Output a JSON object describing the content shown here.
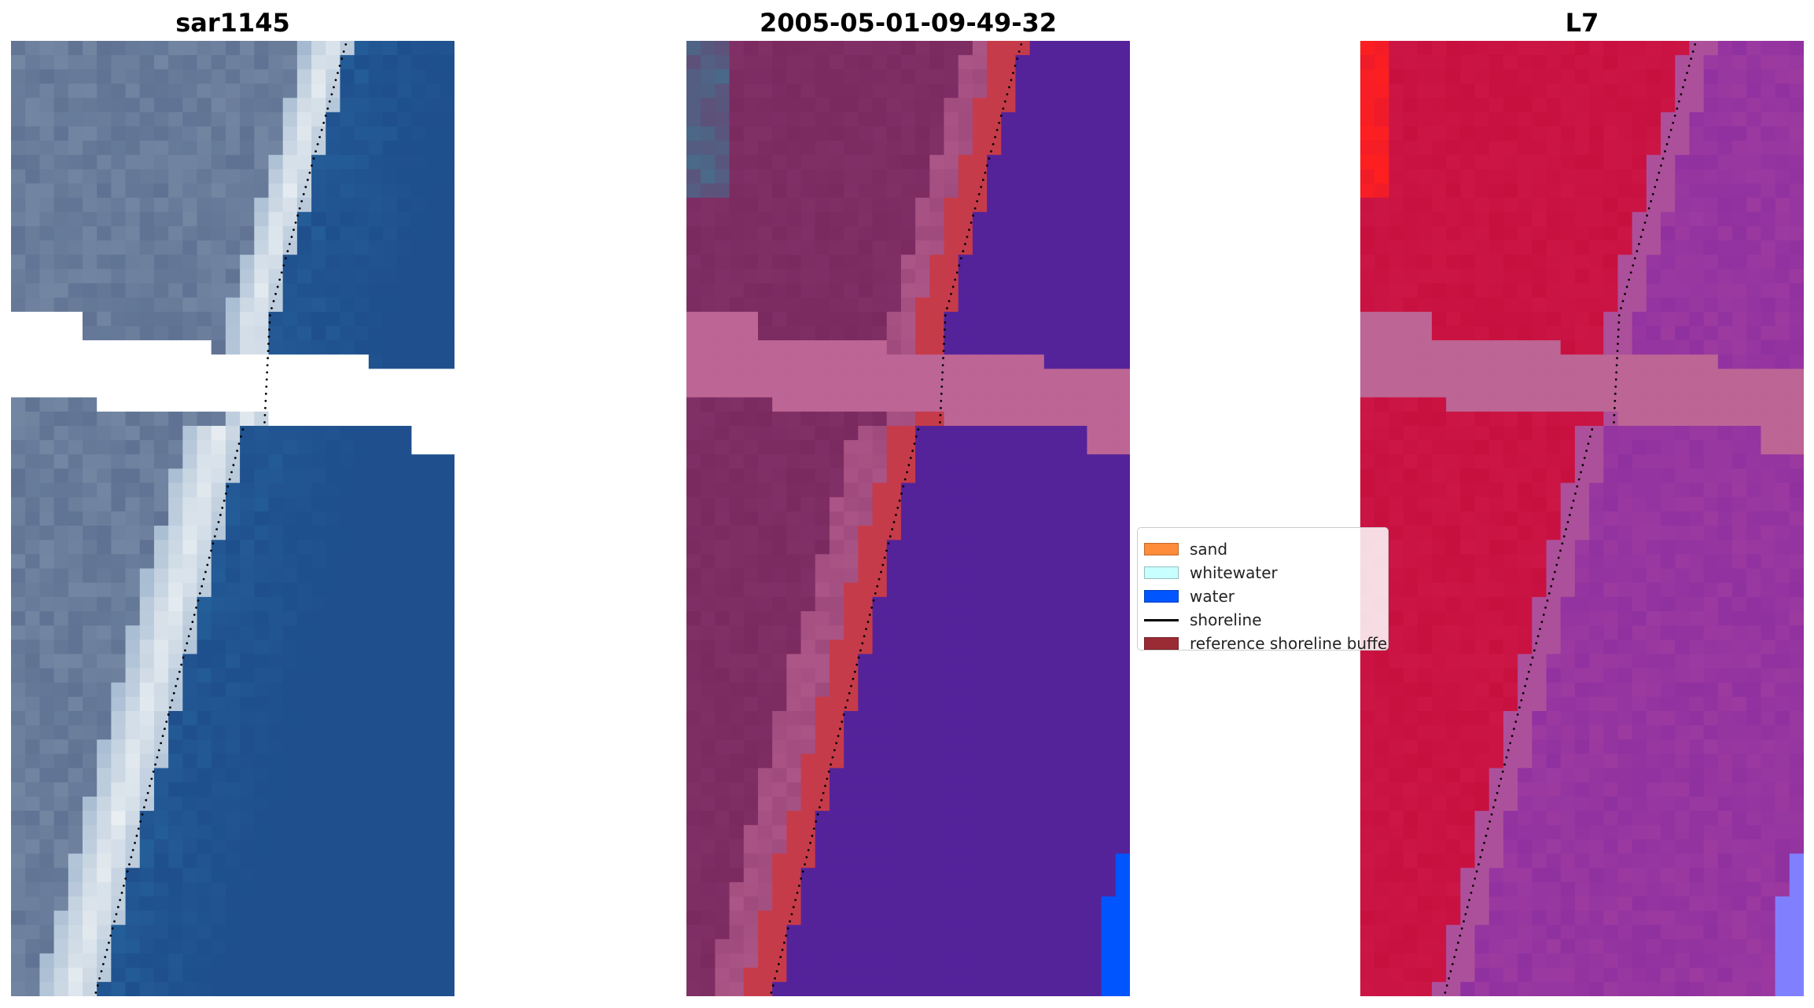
{
  "panels": [
    {
      "title": "sar1145",
      "kind": "rgb"
    },
    {
      "title": "2005-05-01-09-49-32",
      "kind": "classified"
    },
    {
      "title": "L7",
      "kind": "index"
    }
  ],
  "legend": {
    "items": [
      {
        "label": "sand",
        "color": "#ff8c3a",
        "type": "patch"
      },
      {
        "label": "whitewater",
        "color": "#c8ffff",
        "type": "patch"
      },
      {
        "label": "water",
        "color": "#0055ff",
        "type": "patch"
      },
      {
        "label": "shoreline",
        "color": "#000000",
        "type": "line"
      },
      {
        "label": "reference shoreline buffer",
        "color": "#9a2b35",
        "type": "patch"
      }
    ]
  },
  "colors": {
    "nodata_white": "#ffffff",
    "nodata_pink": "#bd6595",
    "rgb_land": "#5f7293",
    "rgb_surf": "#e8eef2",
    "rgb_water": "#1f4f8d",
    "class_land": "#7b2a60",
    "class_water": "#54239a",
    "class_buffer": "#c63b4a",
    "class_blue": "#0055ff",
    "index_land": "#c8103f",
    "index_water": "#9c3aa0",
    "index_bright": "#ff2020",
    "index_blue": "#8080ff"
  }
}
